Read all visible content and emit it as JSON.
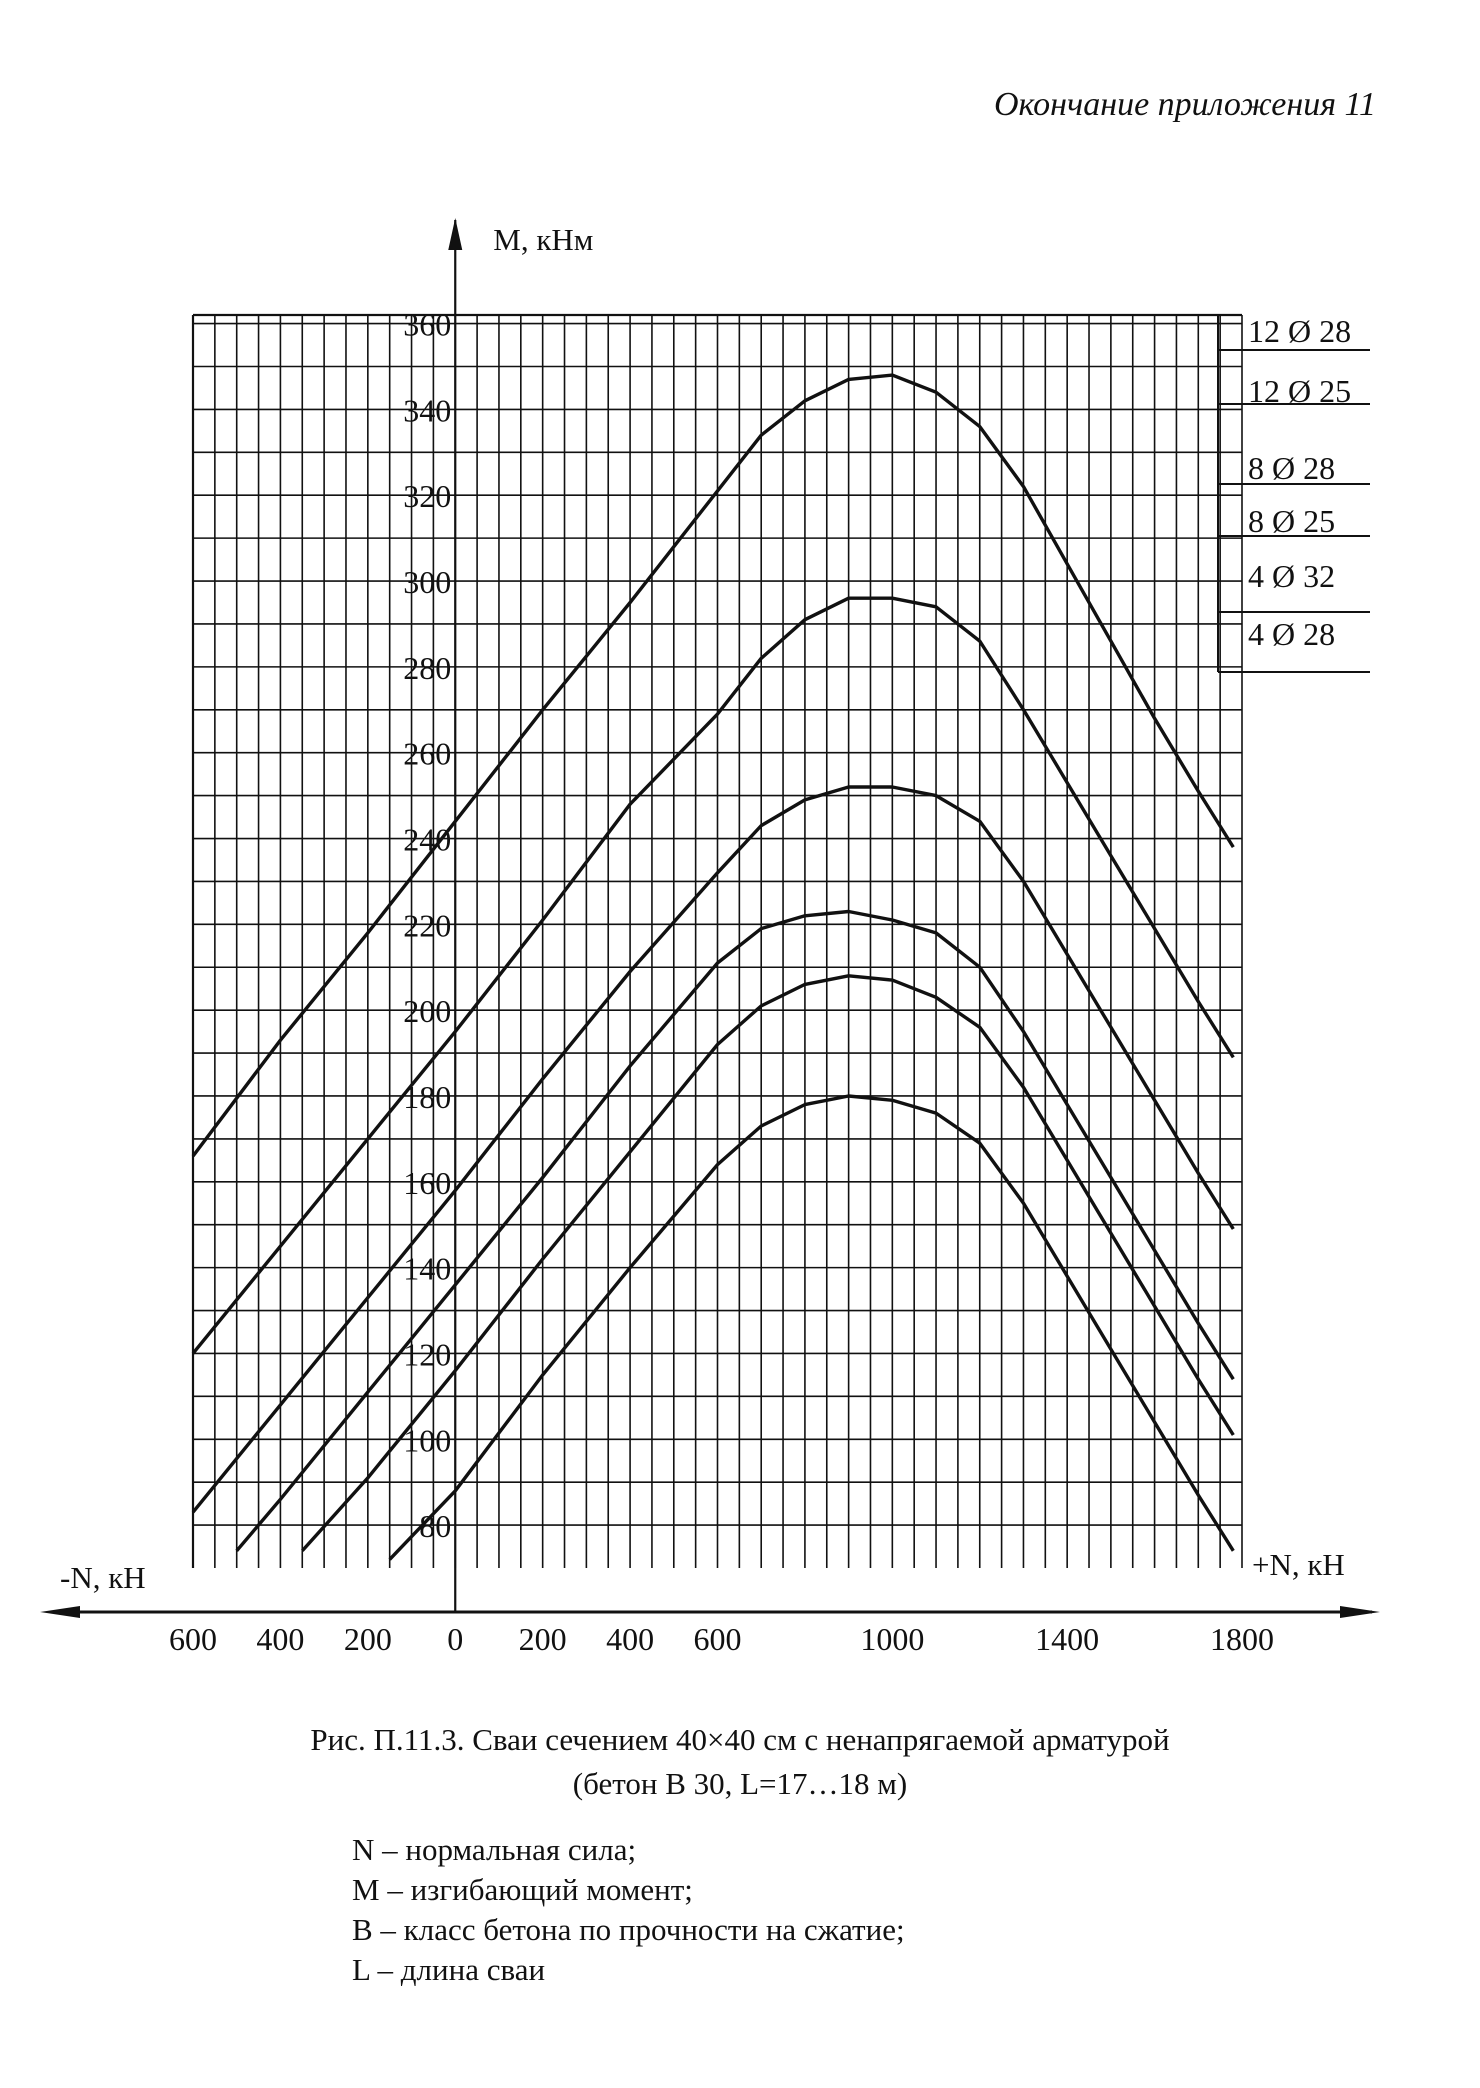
{
  "header": "Окончание приложения 11",
  "caption_line1": "Рис. П.11.3. Сваи сечением 40×40 см с ненапрягаемой арматурой",
  "caption_line2": "(бетон В 30, L=17…18 м)",
  "legend": [
    "N – нормальная сила;",
    "M – изгибающий момент;",
    "B – класс бетона по прочности на сжатие;",
    "L – длина сваи"
  ],
  "chart_data": {
    "type": "line",
    "ylabel": "M, кНм",
    "xlabel_left": "-N, кН",
    "xlabel_right": "+N, кН",
    "xlim": [
      -600,
      1800
    ],
    "ylim": [
      70,
      362
    ],
    "grid": true,
    "y_ticks": [
      80,
      100,
      120,
      140,
      160,
      180,
      200,
      220,
      240,
      260,
      280,
      300,
      320,
      340,
      360
    ],
    "x_tick_labels": [
      {
        "value": -600,
        "label": "600"
      },
      {
        "value": -400,
        "label": "400"
      },
      {
        "value": -200,
        "label": "200"
      },
      {
        "value": 0,
        "label": "0"
      },
      {
        "value": 200,
        "label": "200"
      },
      {
        "value": 400,
        "label": "400"
      },
      {
        "value": 600,
        "label": "600"
      },
      {
        "value": 1000,
        "label": "1000"
      },
      {
        "value": 1400,
        "label": "1400"
      },
      {
        "value": 1800,
        "label": "1800"
      }
    ],
    "series": [
      {
        "name": "12 Ø 28",
        "x": [
          -600,
          -400,
          -200,
          0,
          200,
          400,
          600,
          700,
          800,
          900,
          1000,
          1100,
          1200,
          1300,
          1400,
          1500,
          1600,
          1700,
          1780
        ],
        "y": [
          166,
          193,
          218,
          244,
          270,
          295,
          321,
          334,
          342,
          347,
          348,
          344,
          336,
          322,
          304,
          286,
          268,
          251,
          238
        ]
      },
      {
        "name": "12 Ø 25",
        "x": [
          -600,
          -400,
          -200,
          0,
          200,
          400,
          600,
          700,
          800,
          900,
          1000,
          1100,
          1200,
          1300,
          1400,
          1500,
          1600,
          1700,
          1780
        ],
        "y": [
          120,
          145,
          170,
          195,
          221,
          248,
          269,
          282,
          291,
          296,
          296,
          294,
          286,
          270,
          253,
          236,
          219,
          202,
          189
        ]
      },
      {
        "name": "8 Ø 28",
        "x": [
          -600,
          -400,
          -200,
          0,
          200,
          400,
          600,
          700,
          800,
          900,
          1000,
          1100,
          1200,
          1300,
          1400,
          1500,
          1600,
          1700,
          1780
        ],
        "y": [
          83,
          108,
          133,
          158,
          184,
          209,
          232,
          243,
          249,
          252,
          252,
          250,
          244,
          230,
          213,
          196,
          179,
          162,
          149
        ]
      },
      {
        "name": "8 Ø 25",
        "x": [
          -500,
          -400,
          -200,
          0,
          200,
          400,
          600,
          700,
          800,
          900,
          1000,
          1100,
          1200,
          1300,
          1400,
          1500,
          1600,
          1700,
          1780
        ],
        "y": [
          74,
          86,
          111,
          136,
          161,
          187,
          211,
          219,
          222,
          223,
          221,
          218,
          210,
          195,
          178,
          161,
          144,
          127,
          114
        ]
      },
      {
        "name": "4 Ø 32",
        "x": [
          -350,
          -200,
          0,
          200,
          400,
          600,
          700,
          800,
          900,
          1000,
          1100,
          1200,
          1300,
          1400,
          1500,
          1600,
          1700,
          1780
        ],
        "y": [
          74,
          91,
          116,
          142,
          167,
          192,
          201,
          206,
          208,
          207,
          203,
          196,
          182,
          165,
          148,
          131,
          114,
          101
        ]
      },
      {
        "name": "4 Ø 28",
        "x": [
          -150,
          0,
          200,
          400,
          600,
          700,
          800,
          900,
          1000,
          1100,
          1200,
          1300,
          1400,
          1500,
          1600,
          1700,
          1780
        ],
        "y": [
          72,
          88,
          115,
          140,
          164,
          173,
          178,
          180,
          179,
          176,
          169,
          155,
          138,
          121,
          104,
          87,
          74
        ]
      }
    ],
    "series_label_order": [
      "12 Ø 28",
      "12 Ø 25",
      "8 Ø 28",
      "8 Ø 25",
      "4 Ø 32",
      "4 Ø 28"
    ],
    "colors": {
      "ink": "#111111",
      "grid": "#111111",
      "background": "#ffffff"
    }
  }
}
